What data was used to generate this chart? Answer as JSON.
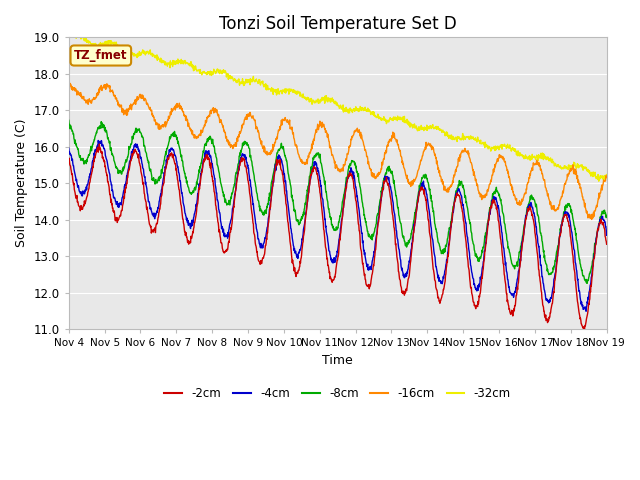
{
  "title": "Tonzi Soil Temperature Set D",
  "xlabel": "Time",
  "ylabel": "Soil Temperature (C)",
  "ylim": [
    11.0,
    19.0
  ],
  "yticks": [
    11.0,
    12.0,
    13.0,
    14.0,
    15.0,
    16.0,
    17.0,
    18.0,
    19.0
  ],
  "xtick_labels": [
    "Nov 4",
    "Nov 5",
    "Nov 6",
    "Nov 7",
    "Nov 8",
    "Nov 9",
    "Nov 10",
    "Nov 11",
    "Nov 12",
    "Nov 13",
    "Nov 14",
    "Nov 15",
    "Nov 16",
    "Nov 17",
    "Nov 18",
    "Nov 19"
  ],
  "legend_label": "TZ_fmet",
  "series_labels": [
    "-2cm",
    "-4cm",
    "-8cm",
    "-16cm",
    "-32cm"
  ],
  "series_colors": [
    "#cc0000",
    "#0000cc",
    "#00aa00",
    "#ff8800",
    "#eeee00"
  ],
  "background_color": "#e8e8e8",
  "n_days": 15,
  "title_fontsize": 12,
  "figsize": [
    6.4,
    4.8
  ],
  "dpi": 100
}
